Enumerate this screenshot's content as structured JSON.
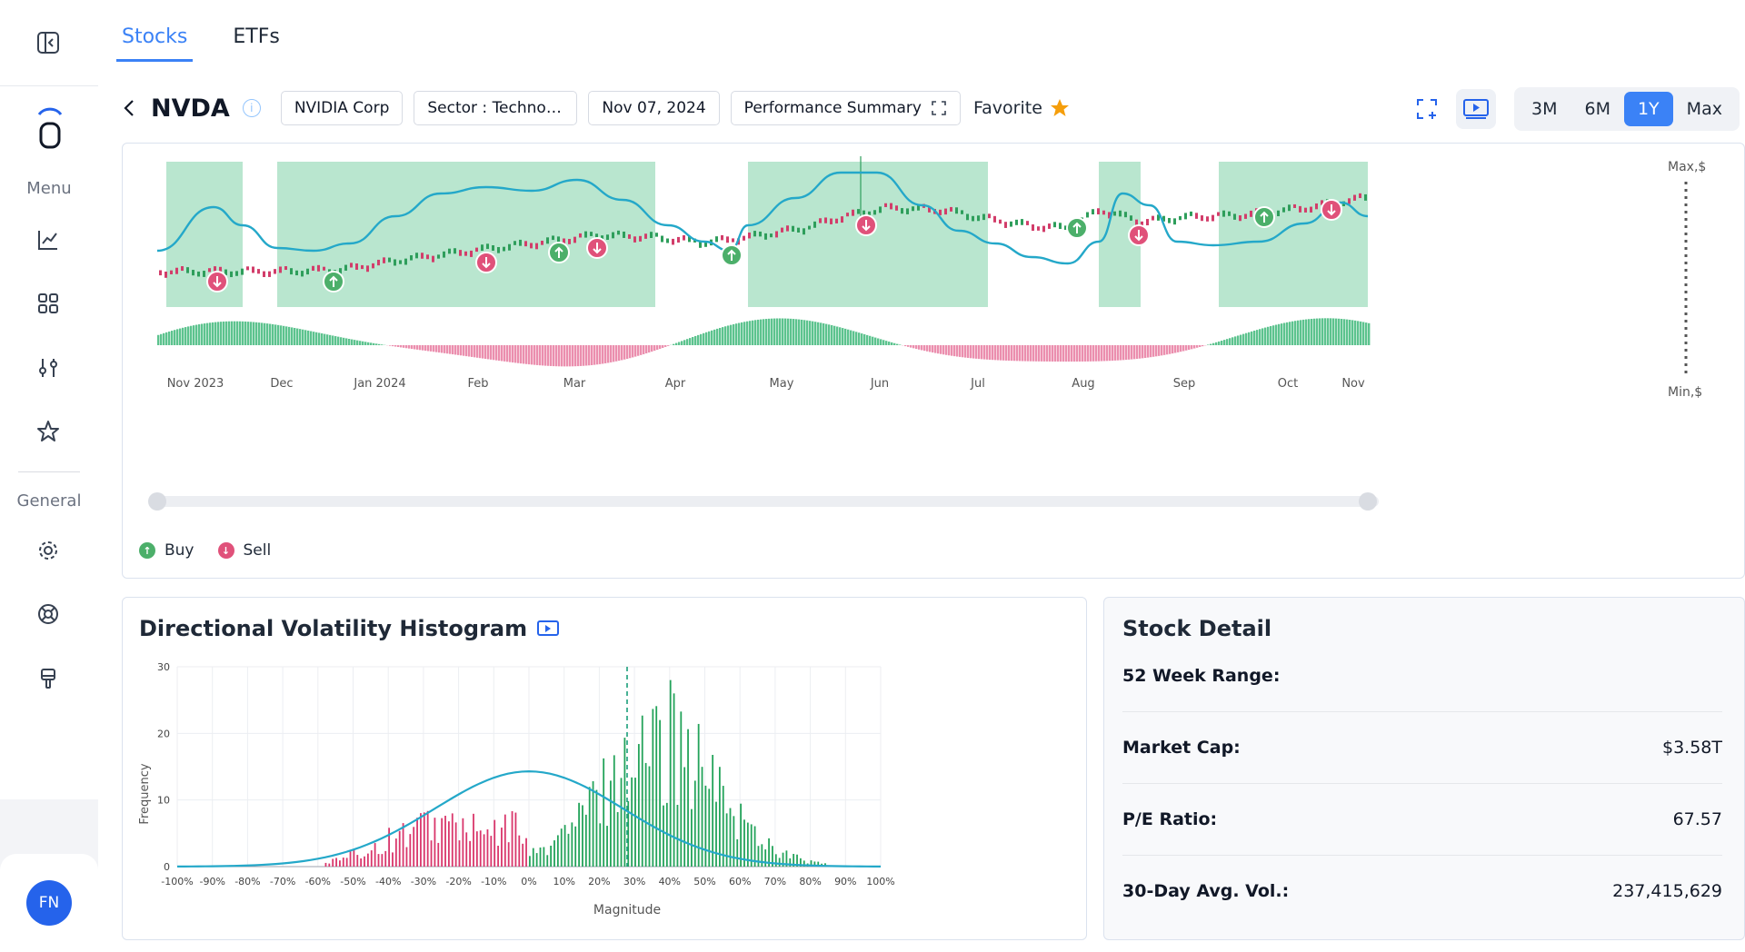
{
  "sidebar": {
    "menu_label": "Menu",
    "general_label": "General",
    "avatar_initials": "FN"
  },
  "tabs": [
    "Stocks",
    "ETFs"
  ],
  "toolbar": {
    "ticker": "NVDA",
    "company": "NVIDIA Corp",
    "sector": "Sector : Technology",
    "date": "Nov 07, 2024",
    "summary_label": "Performance Summary",
    "favorite_label": "Favorite"
  },
  "ranges": [
    "3M",
    "6M",
    "1Y",
    "Max"
  ],
  "active_range": "1Y",
  "main_chart": {
    "type": "line",
    "max_label": "Max,$",
    "min_label": "Min,$",
    "months": [
      "Nov 2023",
      "Dec",
      "Jan 2024",
      "Feb",
      "Mar",
      "Apr",
      "May",
      "Jun",
      "Jul",
      "Aug",
      "Sep",
      "Oct",
      "Nov"
    ],
    "legend_buy": "Buy",
    "legend_sell": "Sell"
  },
  "histogram": {
    "title": "Directional Volatility Histogram",
    "ylabel": "Frequency",
    "xlabel": "Magnitude",
    "yticks": [
      "0",
      "10",
      "20",
      "30"
    ],
    "xticks": [
      "-100%",
      "-90%",
      "-80%",
      "-70%",
      "-60%",
      "-50%",
      "-40%",
      "-30%",
      "-20%",
      "-10%",
      "0%",
      "10%",
      "20%",
      "30%",
      "40%",
      "50%",
      "60%",
      "70%",
      "80%",
      "90%",
      "100%"
    ]
  },
  "detail": {
    "title": "Stock Detail",
    "rows": [
      {
        "label": "52 Week Range:",
        "value": ""
      },
      {
        "label": "Market Cap:",
        "value": "$3.58T"
      },
      {
        "label": "P/E Ratio:",
        "value": "67.57"
      },
      {
        "label": "30-Day Avg. Vol.:",
        "value": "237,415,629"
      }
    ]
  },
  "colors": {
    "accent": "#3b82f6",
    "buy": "#4caf6a",
    "sell": "#e0517a",
    "line": "#24a8c9",
    "band": "#b9e6cf"
  }
}
